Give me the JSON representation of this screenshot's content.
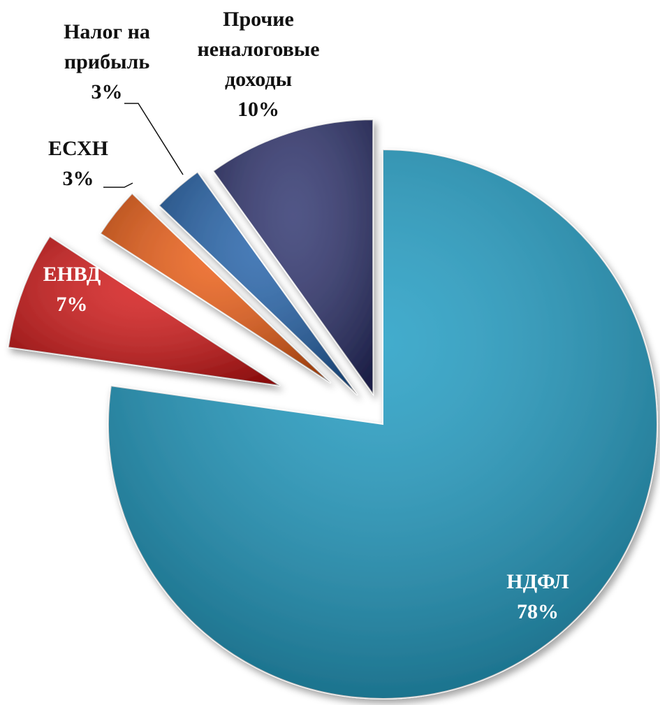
{
  "chart_data": {
    "type": "pie",
    "categories": [
      "НДФЛ",
      "ЕНВД",
      "ЕСХН",
      "Налог на прибыль",
      "Прочие неналоговые доходы"
    ],
    "values": [
      78,
      7,
      3,
      3,
      10
    ],
    "value_labels": [
      "78%",
      "7%",
      "3%",
      "3%",
      "10%"
    ],
    "colors": [
      "#1a9ac2",
      "#d41414",
      "#ec5a10",
      "#1f5fa8",
      "#2b306c"
    ]
  }
}
